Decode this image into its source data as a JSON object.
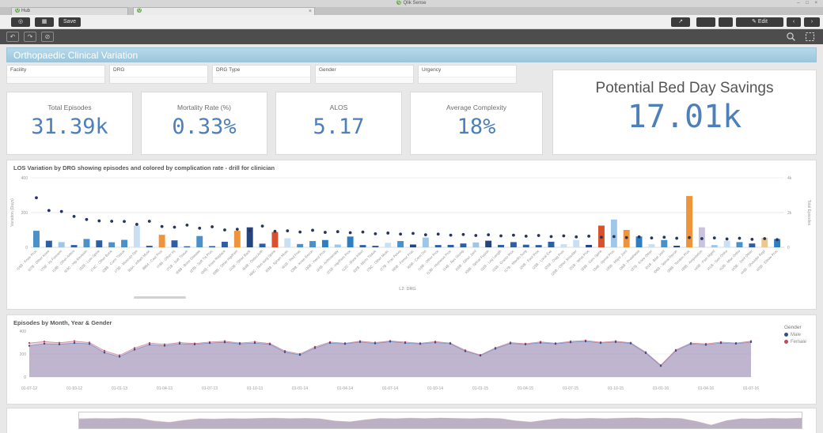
{
  "titlebar": {
    "app_title": "Qlik Sense"
  },
  "tabs": {
    "tab1_label": "Hub"
  },
  "icons": {
    "qlik_logo": "◎",
    "grid": "▦",
    "share": "↗",
    "edit_pencil": "✎",
    "prev": "‹",
    "next": "›",
    "tab_close": "×",
    "step_back": "↶",
    "step_forward": "↷",
    "clear_selections": "⊘",
    "window_controls": "– □ ×",
    "favicon": "Q"
  },
  "toolbar": {
    "save_label": "Save",
    "edit_label": "Edit"
  },
  "banner": {
    "title": "Orthopaedic Clinical Variation"
  },
  "filters": [
    {
      "label": "Facility"
    },
    {
      "label": "DRG"
    },
    {
      "label": "DRG Type"
    },
    {
      "label": "Gender"
    },
    {
      "label": "Urgency"
    }
  ],
  "kpis": [
    {
      "label": "Total Episodes",
      "value": "31.39k"
    },
    {
      "label": "Mortality Rate (%)",
      "value": "0.33%"
    },
    {
      "label": "ALOS",
      "value": "5.17"
    },
    {
      "label": "Average Complexity",
      "value": "18%"
    }
  ],
  "bed_day_savings": {
    "label": "Potential Bed Day Savings",
    "value": "17.01k"
  },
  "theme": {
    "accent": "#4d7fba",
    "banner_blue": "#a9cfe2",
    "scatter_dot": "#27355e"
  },
  "los_chart": {
    "title": "LOS Variation by DRG showing episodes and colored by complication rate - drill for clinician"
  },
  "episodes_chart": {
    "title": "Episodes by Month, Year & Gender",
    "legend_title": "Gender",
    "legend": [
      {
        "label": "Male",
        "color": "#2f4f8f"
      },
      {
        "label": "Female",
        "color": "#c2485e"
      }
    ]
  },
  "chart_data": [
    {
      "type": "bar",
      "title": "LOS Variation by DRG showing episodes and colored by complication rate - drill for clinician",
      "xlabel": "L2: DRG",
      "ylabel_left": "Variation (Days)",
      "ylabel_right": "Total Episodes",
      "ylim_left": [
        0,
        400
      ],
      "ylim_right": [
        0,
        4000
      ],
      "yticks_left": [
        "400",
        "200",
        "0"
      ],
      "yticks_right": [
        "4k",
        "2k",
        "0"
      ],
      "palette": [
        "#4a90c9",
        "#2e5fa3",
        "#9dc6e8",
        "#c9e0f2",
        "#f0943c",
        "#d9512c",
        "#24457e",
        "#c9c3e0",
        "#ecc78e",
        "#2e7fc2"
      ],
      "categories": [
        "I16B - Knee Proc",
        "I07B - Other Knee",
        "I75B - Inj Forearm",
        "I18B - Other Arthro",
        "I03C - Hip Revision",
        "I32B - Lum Spine",
        "I74C - Other Bone",
        "I28B - Conn Tissue",
        "I73B - Musculo Sys",
        "I66A - Inflam Musc",
        "8864 - Cast Proc",
        "I78B - Other Inj",
        "I71B - Soft Tissue",
        "I69B - Bone Disease",
        "I27B - Soft Tis Proc",
        "I04B - Knee Replace",
        "I08B - Other Hip/Fem",
        "I10B - Other Back",
        "I64B - Osteo Arth",
        "I68C - Non-surg Spine",
        "I63B - Sprain Musc",
        "I61B - Red Frac",
        "I29B - Knee Recon",
        "I30B - Hand Proc",
        "I24B - Arthroscopy",
        "I21B - Hip/Fem Proc",
        "I12C - Bone Infect",
        "I02B - Micro Tissue",
        "I76C - Other Musc",
        "I77B - Frac Pelvis",
        "I60B - Femur Frac",
        "I65B - Conn Dis",
        "I19B - Other Proc",
        "I13B - Humerus Proc",
        "I14B - Rev Stump",
        "I05B - Other Joint",
        "I09B - Spinal Fusion",
        "I11B - Leg Length",
        "I15B - Cranio Proc",
        "I17B - Maxillo Surg",
        "I20B - Foot Proc",
        "I23B - Local Exc",
        "I25B - Diag Proc",
        "I26B - Other Shoulder",
        "I31B - Wrist Proc",
        "I33B - Cerv Spine",
        "I34B - Spinal Proc",
        "I35B - Major Joint",
        "I36B - Prosthesis",
        "I37B - Knee Other",
        "I01B - Bilat Joint",
        "I06B - Spinal Recon",
        "I38B - Tendon Proc",
        "I39B - Amputation",
        "I40B - Pain Mgmt",
        "I41B - Geri Ortho",
        "I42B - Misc Ortho",
        "I43B - Joint Other",
        "I44B - Shoulder Repl",
        "I45B - Elbow Proc"
      ],
      "series": [
        {
          "name": "Total Episodes",
          "render": "bar",
          "values": [
            950,
            380,
            300,
            130,
            480,
            400,
            290,
            430,
            1250,
            90,
            720,
            400,
            60,
            650,
            70,
            320,
            950,
            1150,
            210,
            880,
            520,
            190,
            360,
            420,
            160,
            620,
            130,
            90,
            260,
            360,
            160,
            560,
            130,
            140,
            220,
            280,
            380,
            140,
            300,
            150,
            130,
            320,
            180,
            420,
            140,
            1250,
            1600,
            1000,
            620,
            180,
            420,
            90,
            2950,
            1150,
            130,
            380,
            300,
            220,
            550,
            480
          ],
          "color_idx": [
            0,
            1,
            2,
            1,
            0,
            1,
            0,
            0,
            3,
            1,
            4,
            1,
            1,
            0,
            1,
            1,
            4,
            6,
            1,
            5,
            3,
            0,
            0,
            9,
            2,
            9,
            1,
            1,
            3,
            0,
            6,
            2,
            1,
            1,
            1,
            2,
            6,
            1,
            1,
            1,
            1,
            1,
            3,
            3,
            6,
            5,
            2,
            4,
            9,
            3,
            0,
            6,
            4,
            7,
            2,
            3,
            0,
            1,
            8,
            9
          ]
        },
        {
          "name": "Variation (Days)",
          "render": "scatter",
          "color": "#27355e",
          "values": [
            285,
            212,
            206,
            178,
            160,
            152,
            150,
            149,
            132,
            150,
            120,
            116,
            128,
            110,
            118,
            100,
            104,
            96,
            122,
            92,
            95,
            88,
            98,
            86,
            90,
            84,
            88,
            78,
            82,
            76,
            80,
            72,
            76,
            70,
            74,
            68,
            72,
            66,
            70,
            64,
            68,
            62,
            66,
            60,
            64,
            58,
            62,
            56,
            60,
            54,
            58,
            52,
            56,
            50,
            54,
            48,
            52,
            46,
            50,
            44
          ]
        }
      ]
    },
    {
      "type": "area",
      "title": "Episodes by Month, Year & Gender",
      "ylim": [
        0,
        400
      ],
      "yticks": [
        "400",
        "200",
        "0"
      ],
      "legend_position": "right",
      "x_ticks": [
        "01-07-12",
        "01-10-12",
        "01-01-13",
        "01-04-13",
        "01-07-13",
        "01-10-13",
        "01-01-14",
        "01-04-14",
        "01-07-14",
        "01-10-14",
        "01-01-15",
        "01-04-15",
        "01-07-15",
        "01-10-15",
        "01-01-16",
        "01-04-16",
        "01-07-16"
      ],
      "series": [
        {
          "name": "Female",
          "line": "#cf8f9e",
          "fill": "rgba(216,140,155,0.40)",
          "dot": "#c2485e",
          "values": [
            296,
            308,
            298,
            312,
            300,
            228,
            188,
            252,
            296,
            284,
            300,
            292,
            304,
            312,
            296,
            306,
            292,
            226,
            200,
            262,
            304,
            294,
            312,
            300,
            314,
            304,
            294,
            308,
            296,
            232,
            192,
            254,
            300,
            290,
            306,
            294,
            310,
            318,
            302,
            312,
            298,
            216,
            102,
            236,
            296,
            288,
            304,
            296,
            312
          ]
        },
        {
          "name": "Male",
          "line": "#7b93c9",
          "fill": "rgba(120,140,195,0.40)",
          "dot": "#2f4f8f",
          "values": [
            272,
            290,
            284,
            296,
            288,
            212,
            176,
            238,
            282,
            272,
            290,
            284,
            296,
            302,
            288,
            296,
            284,
            216,
            192,
            252,
            296,
            288,
            304,
            292,
            308,
            296,
            288,
            300,
            290,
            224,
            186,
            246,
            292,
            284,
            298,
            288,
            302,
            310,
            296,
            304,
            292,
            208,
            96,
            228,
            288,
            280,
            296,
            290,
            304
          ]
        }
      ]
    },
    {
      "type": "area",
      "title": "Overview navigator (mini chart)",
      "note": "muted thumbnail of the monthly episode series",
      "series_ref": "uses series of chart 2",
      "fills": [
        "rgba(214,160,170,0.45)",
        "rgba(150,148,180,0.55)"
      ]
    }
  ]
}
